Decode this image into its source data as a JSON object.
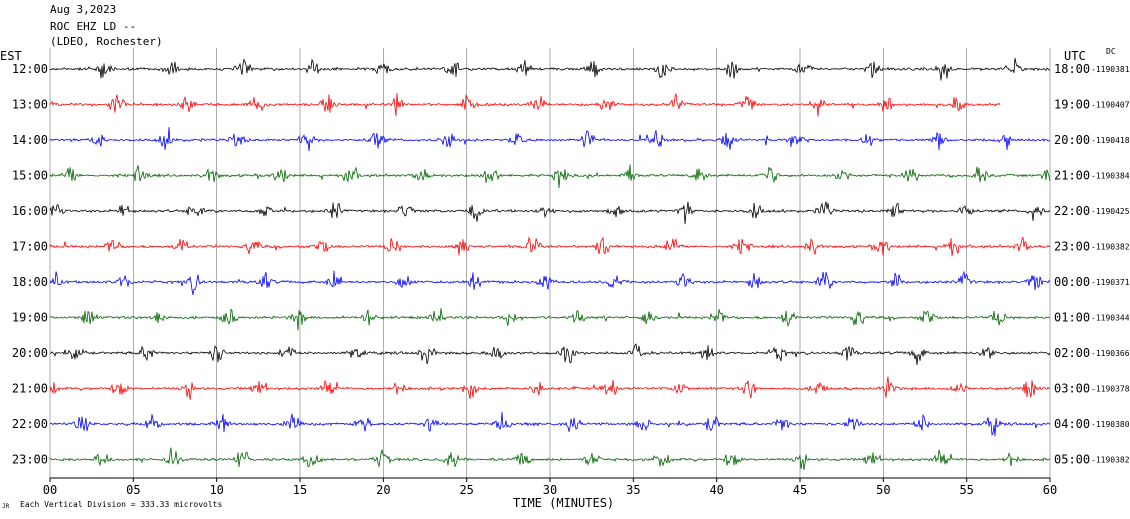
{
  "header": {
    "date": "Aug 3,2023",
    "station": "ROC EHZ LD --",
    "network": "(LDEO, Rochester)"
  },
  "left_zone": "EST",
  "right_zone": "UTC",
  "dc_label": "DC",
  "footer": {
    "scale_note": "Each Vertical Division = 333.33 microvolts",
    "corner_mark": "JR"
  },
  "chart_data": {
    "type": "line",
    "title": "ROC EHZ LD --",
    "xlabel": "TIME (MINUTES)",
    "ylabel": "",
    "xlim": [
      0,
      60
    ],
    "x_ticks": [
      0,
      5,
      10,
      15,
      20,
      25,
      30,
      35,
      40,
      45,
      50,
      55,
      60
    ],
    "x_tick_labels": [
      "00",
      "05",
      "10",
      "15",
      "20",
      "25",
      "30",
      "35",
      "40",
      "45",
      "50",
      "55",
      "60"
    ],
    "grid": true,
    "colors": {
      "black": "#000000",
      "red": "#ff0000",
      "blue": "#0000ff",
      "green": "#006400",
      "grid": "#888888"
    },
    "rows": [
      {
        "est": "12:00",
        "utc": "18:00",
        "dc": "-1190381",
        "color": "#000000",
        "start_min": 0,
        "end_min": 60
      },
      {
        "est": "13:00",
        "utc": "19:00",
        "dc": "-1190407",
        "color": "#ff0000",
        "start_min": 0,
        "end_min": 57
      },
      {
        "est": "14:00",
        "utc": "20:00",
        "dc": "-1190418",
        "color": "#0000ff",
        "start_min": 0,
        "end_min": 60
      },
      {
        "est": "15:00",
        "utc": "21:00",
        "dc": "-1190384",
        "color": "#006400",
        "start_min": 0,
        "end_min": 60
      },
      {
        "est": "16:00",
        "utc": "22:00",
        "dc": "-1190425",
        "color": "#000000",
        "start_min": 0,
        "end_min": 60
      },
      {
        "est": "17:00",
        "utc": "23:00",
        "dc": "-1190382",
        "color": "#ff0000",
        "start_min": 0,
        "end_min": 60
      },
      {
        "est": "18:00",
        "utc": "00:00",
        "dc": "-1190371",
        "color": "#0000ff",
        "start_min": 0,
        "end_min": 60
      },
      {
        "est": "19:00",
        "utc": "01:00",
        "dc": "-1190344",
        "color": "#006400",
        "start_min": 0,
        "end_min": 60
      },
      {
        "est": "20:00",
        "utc": "02:00",
        "dc": "-1190366",
        "color": "#000000",
        "start_min": 0,
        "end_min": 60
      },
      {
        "est": "21:00",
        "utc": "03:00",
        "dc": "-1190378",
        "color": "#ff0000",
        "start_min": 0,
        "end_min": 60
      },
      {
        "est": "22:00",
        "utc": "04:00",
        "dc": "-1190380",
        "color": "#0000ff",
        "start_min": 0,
        "end_min": 60
      },
      {
        "est": "23:00",
        "utc": "05:00",
        "dc": "-1190382",
        "color": "#006400",
        "start_min": 0,
        "end_min": 60
      }
    ]
  }
}
